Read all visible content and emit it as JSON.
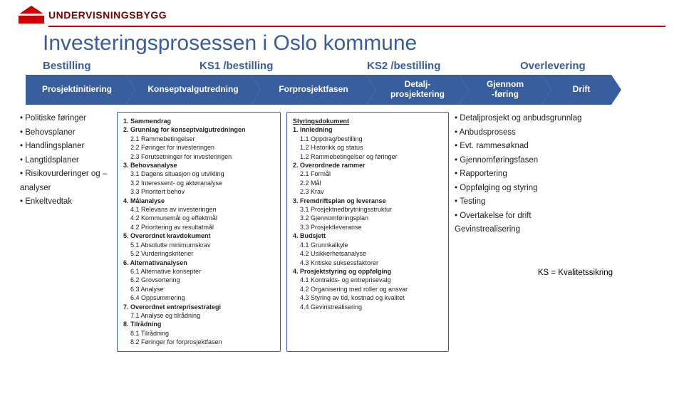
{
  "logo": {
    "text": "UNDERVISNINGSBYGG"
  },
  "title": "Investeringsprosessen i Oslo kommune",
  "phase_labels": [
    "Bestilling",
    "KS1 /bestilling",
    "KS2 /bestilling",
    "Overlevering"
  ],
  "chevrons": [
    "Prosjektinitiering",
    "Konseptvalgutredning",
    "Forprosjektfasen",
    "Detalj-\nprosjektering",
    "Gjennom\n-føring",
    "Drift"
  ],
  "col1": [
    "Politiske føringer",
    "Behovsplaner",
    "Handlingsplaner",
    "Langtidsplaner",
    "Risikovurderinger og –analyser",
    "Enkeltvedtak"
  ],
  "col2": {
    "items": [
      {
        "n": "1.",
        "t": "Sammendrag",
        "b": 1
      },
      {
        "n": "2.",
        "t": "Grunnlag for konseptvalgutredningen",
        "b": 1
      },
      {
        "n": "2.1",
        "t": "Rammebetingelser"
      },
      {
        "n": "2.2",
        "t": "Føringer for investeringen"
      },
      {
        "n": "2.3",
        "t": "Forutsetninger for investeringen"
      },
      {
        "n": "3.",
        "t": "Behovsanalyse",
        "b": 1
      },
      {
        "n": "3.1",
        "t": "Dagens situasjon og utvikling"
      },
      {
        "n": "3.2",
        "t": "Interessent- og aktøranalyse"
      },
      {
        "n": "3.3",
        "t": "Prioritert behov"
      },
      {
        "n": "4.",
        "t": "Målanalyse",
        "b": 1
      },
      {
        "n": "4.1",
        "t": "Relevans av investeringen"
      },
      {
        "n": "4.2",
        "t": "Kommunemål og effektmål"
      },
      {
        "n": "4.2",
        "t": "Prioritering av resultatmål"
      },
      {
        "n": "5.",
        "t": "Overordnet kravdokument",
        "b": 1
      },
      {
        "n": "5.1",
        "t": "Absolutte minimumskrav"
      },
      {
        "n": "5.2",
        "t": "Vurderingskriterier"
      },
      {
        "n": "6.",
        "t": "Alternativanalysen",
        "b": 1
      },
      {
        "n": "6.1",
        "t": "Alternative konsepter"
      },
      {
        "n": "6.2",
        "t": "Grovsortering"
      },
      {
        "n": "6.3",
        "t": "Analyse"
      },
      {
        "n": "6.4",
        "t": "Oppsummering"
      },
      {
        "n": "7.",
        "t": "Overordnet entreprisestrategi",
        "b": 1
      },
      {
        "n": "7.1",
        "t": "Analyse og tilrådning"
      },
      {
        "n": "8.",
        "t": "Tilrådning",
        "b": 1
      },
      {
        "n": "8.1",
        "t": "Tilrådning"
      },
      {
        "n": "8.2",
        "t": "Føringer for forprosjektfasen"
      }
    ]
  },
  "col3": {
    "title": "Styringsdokument",
    "items": [
      {
        "n": "1.",
        "t": "Innledning",
        "b": 1
      },
      {
        "n": "1.1",
        "t": "Oppdrag/bestilling"
      },
      {
        "n": "1.2",
        "t": "Historikk og status"
      },
      {
        "n": "1.2",
        "t": "Rammebetingelser og føringer"
      },
      {
        "n": "2.",
        "t": "Overordnede rammer",
        "b": 1
      },
      {
        "n": "2.1",
        "t": "Formål"
      },
      {
        "n": "2.2",
        "t": "Mål"
      },
      {
        "n": "2.3",
        "t": "Krav"
      },
      {
        "n": "3.",
        "t": "Fremdriftsplan og leveranse",
        "b": 1
      },
      {
        "n": "3.1",
        "t": "Prosjektnedbrytningsstruktur"
      },
      {
        "n": "3.2",
        "t": "Gjennomføringsplan"
      },
      {
        "n": "3.3",
        "t": "Prosjektleveranse"
      },
      {
        "n": "4.",
        "t": "Budsjett",
        "b": 1
      },
      {
        "n": "4.1",
        "t": "Grunnkalkyle"
      },
      {
        "n": "4.2",
        "t": "Usikkerhetsanalyse"
      },
      {
        "n": "4.3",
        "t": "Kritiske suksessfaktorer"
      },
      {
        "n": "4.",
        "t": "Prosjektstyring og oppfølging",
        "b": 1
      },
      {
        "n": "4.1",
        "t": "Kontrakts- og entreprisevalg"
      },
      {
        "n": "4.2",
        "t": "Organisering med roller og ansvar"
      },
      {
        "n": "4.3",
        "t": "Styring av tid, kostnad og kvalitet"
      },
      {
        "n": "4.4",
        "t": "Gevinstrealisering"
      }
    ]
  },
  "col4": [
    "Detaljprosjekt og anbudsgrunnlag",
    "Anbudsprosess",
    "Evt. rammesøknad",
    "Gjennomføringsfasen",
    "Rapportering",
    "Oppfølging og styring",
    "Testing",
    "Overtakelse for drift",
    "Gevinstrealisering"
  ],
  "ks": "KS = Kvalitetssikring",
  "colors": {
    "brand": "#c00",
    "blue": "#385e9d"
  }
}
